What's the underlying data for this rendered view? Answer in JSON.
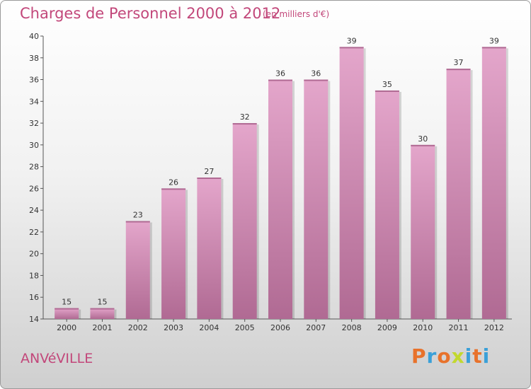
{
  "header": {
    "title": "Charges de Personnel 2000 à 2012",
    "unit": "(en milliers d'€)"
  },
  "footer": {
    "commune": "ANVéVILLE",
    "logo": "Proxiti"
  },
  "colors": {
    "bar_light": "#e4a6cb",
    "bar_dark": "#b06a93",
    "accent": "#c2477a",
    "logo_letters": [
      "#e8722b",
      "#3aa0d8",
      "#e8722b",
      "#c2d82f",
      "#3aa0d8",
      "#e8722b",
      "#3aa0d8"
    ]
  },
  "chart_data": {
    "type": "bar",
    "title": "Charges de Personnel 2000 à 2012",
    "subtitle": "(en milliers d'€)",
    "categories": [
      "2000",
      "2001",
      "2002",
      "2003",
      "2004",
      "2005",
      "2006",
      "2007",
      "2008",
      "2009",
      "2010",
      "2011",
      "2012"
    ],
    "values": [
      15,
      15,
      23,
      26,
      27,
      32,
      36,
      36,
      39,
      35,
      30,
      37,
      39
    ],
    "ylim": [
      14,
      40
    ],
    "yticks": [
      14,
      16,
      18,
      20,
      22,
      24,
      26,
      28,
      30,
      32,
      34,
      36,
      38,
      40
    ],
    "grid": false,
    "legend": "none"
  }
}
